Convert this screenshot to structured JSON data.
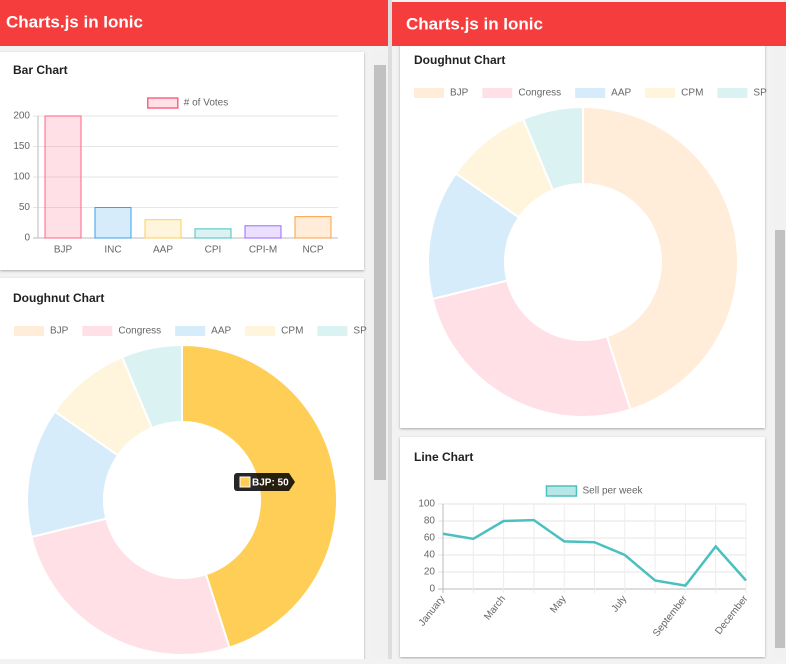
{
  "screens": [
    {
      "title": "Charts.js in Ionic"
    },
    {
      "title": "Charts.js in Ionic"
    }
  ],
  "chart_data": [
    {
      "type": "bar",
      "title": "Bar Chart",
      "categories": [
        "BJP",
        "INC",
        "AAP",
        "CPI",
        "CPI-M",
        "NCP"
      ],
      "series": [
        {
          "name": "# of Votes",
          "color": "#ff6384",
          "values": [
            200,
            50,
            30,
            15,
            20,
            35
          ]
        }
      ],
      "bar_colors": [
        "rgba(255,99,132,0.2)",
        "rgba(54,162,235,0.2)",
        "rgba(255,206,86,0.2)",
        "rgba(75,192,192,0.2)",
        "rgba(153,102,255,0.2)",
        "rgba(255,159,64,0.2)"
      ],
      "bar_borders": [
        "#ff6384",
        "#36a2eb",
        "#ffce56",
        "#4bc0c0",
        "#9966ff",
        "#ff9f40"
      ],
      "ylim": [
        0,
        200
      ],
      "yticks": [
        0,
        50,
        100,
        150,
        200
      ],
      "grid": true,
      "legend": "top"
    },
    {
      "type": "doughnut",
      "title": "Doughnut Chart",
      "labels": [
        "BJP",
        "Congress",
        "AAP",
        "CPM",
        "SP"
      ],
      "values": [
        50,
        29,
        15,
        10,
        7
      ],
      "colors": [
        "#ffecd9",
        "#ffe0e6",
        "#d7ecfb",
        "#fff5dd",
        "#dbf2f2"
      ],
      "active": 0,
      "active_color": "#ffce56",
      "tooltip": "BJP: 50",
      "legend": "top"
    },
    {
      "type": "doughnut",
      "title": "Doughnut Chart",
      "labels": [
        "BJP",
        "Congress",
        "AAP",
        "CPM",
        "SP"
      ],
      "values": [
        50,
        29,
        15,
        10,
        7
      ],
      "colors": [
        "#ffecd9",
        "#ffe0e6",
        "#d7ecfb",
        "#fff5dd",
        "#dbf2f2"
      ],
      "legend": "top"
    },
    {
      "type": "line",
      "title": "Line Chart",
      "categories": [
        "January",
        null,
        "March",
        null,
        "May",
        null,
        "July",
        null,
        "September",
        null,
        "December"
      ],
      "series": [
        {
          "name": "Sell per week",
          "color": "#4bc0c0",
          "values": [
            65,
            59,
            80,
            81,
            56,
            55,
            40,
            10,
            4,
            50,
            10
          ]
        }
      ],
      "ylim": [
        0,
        100
      ],
      "yticks": [
        0,
        20,
        40,
        60,
        80,
        100
      ],
      "grid": true,
      "legend": "top"
    }
  ]
}
